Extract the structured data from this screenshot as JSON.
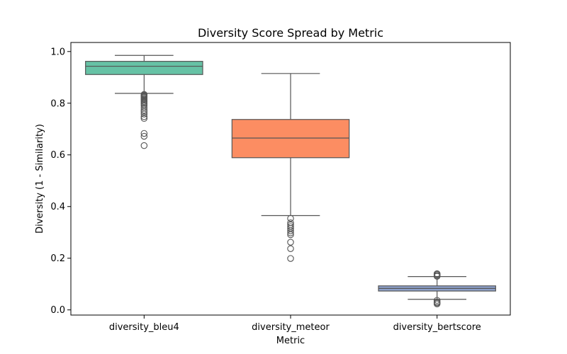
{
  "chart_data": {
    "type": "box",
    "title": "Diversity Score Spread by Metric",
    "xlabel": "Metric",
    "ylabel": "Diversity (1 - Similarity)",
    "ylim": [
      -0.02,
      1.035
    ],
    "yticks": [
      "0.0",
      "0.2",
      "0.4",
      "0.6",
      "0.8",
      "1.0"
    ],
    "grid": false,
    "categories": [
      "diversity_bleu4",
      "diversity_meteor",
      "diversity_bertscore"
    ],
    "boxes": [
      {
        "name": "diversity_bleu4",
        "color": "#66c2a5",
        "whisker_low": 0.838,
        "q1": 0.911,
        "median": 0.943,
        "q3": 0.962,
        "whisker_high": 0.985,
        "outliers": [
          0.834,
          0.831,
          0.828,
          0.825,
          0.822,
          0.818,
          0.815,
          0.811,
          0.806,
          0.801,
          0.796,
          0.79,
          0.782,
          0.773,
          0.766,
          0.758,
          0.748,
          0.741,
          0.683,
          0.672,
          0.636
        ]
      },
      {
        "name": "diversity_meteor",
        "color": "#fc8d62",
        "whisker_low": 0.365,
        "q1": 0.589,
        "median": 0.665,
        "q3": 0.737,
        "whisker_high": 0.915,
        "outliers": [
          0.354,
          0.337,
          0.329,
          0.322,
          0.315,
          0.306,
          0.298,
          0.291,
          0.262,
          0.237,
          0.199
        ]
      },
      {
        "name": "diversity_bertscore",
        "color": "#8da0cb",
        "whisker_low": 0.041,
        "q1": 0.073,
        "median": 0.083,
        "q3": 0.093,
        "whisker_high": 0.129,
        "outliers": [
          0.14,
          0.137,
          0.133,
          0.13,
          0.037,
          0.031,
          0.027,
          0.023
        ]
      }
    ]
  }
}
